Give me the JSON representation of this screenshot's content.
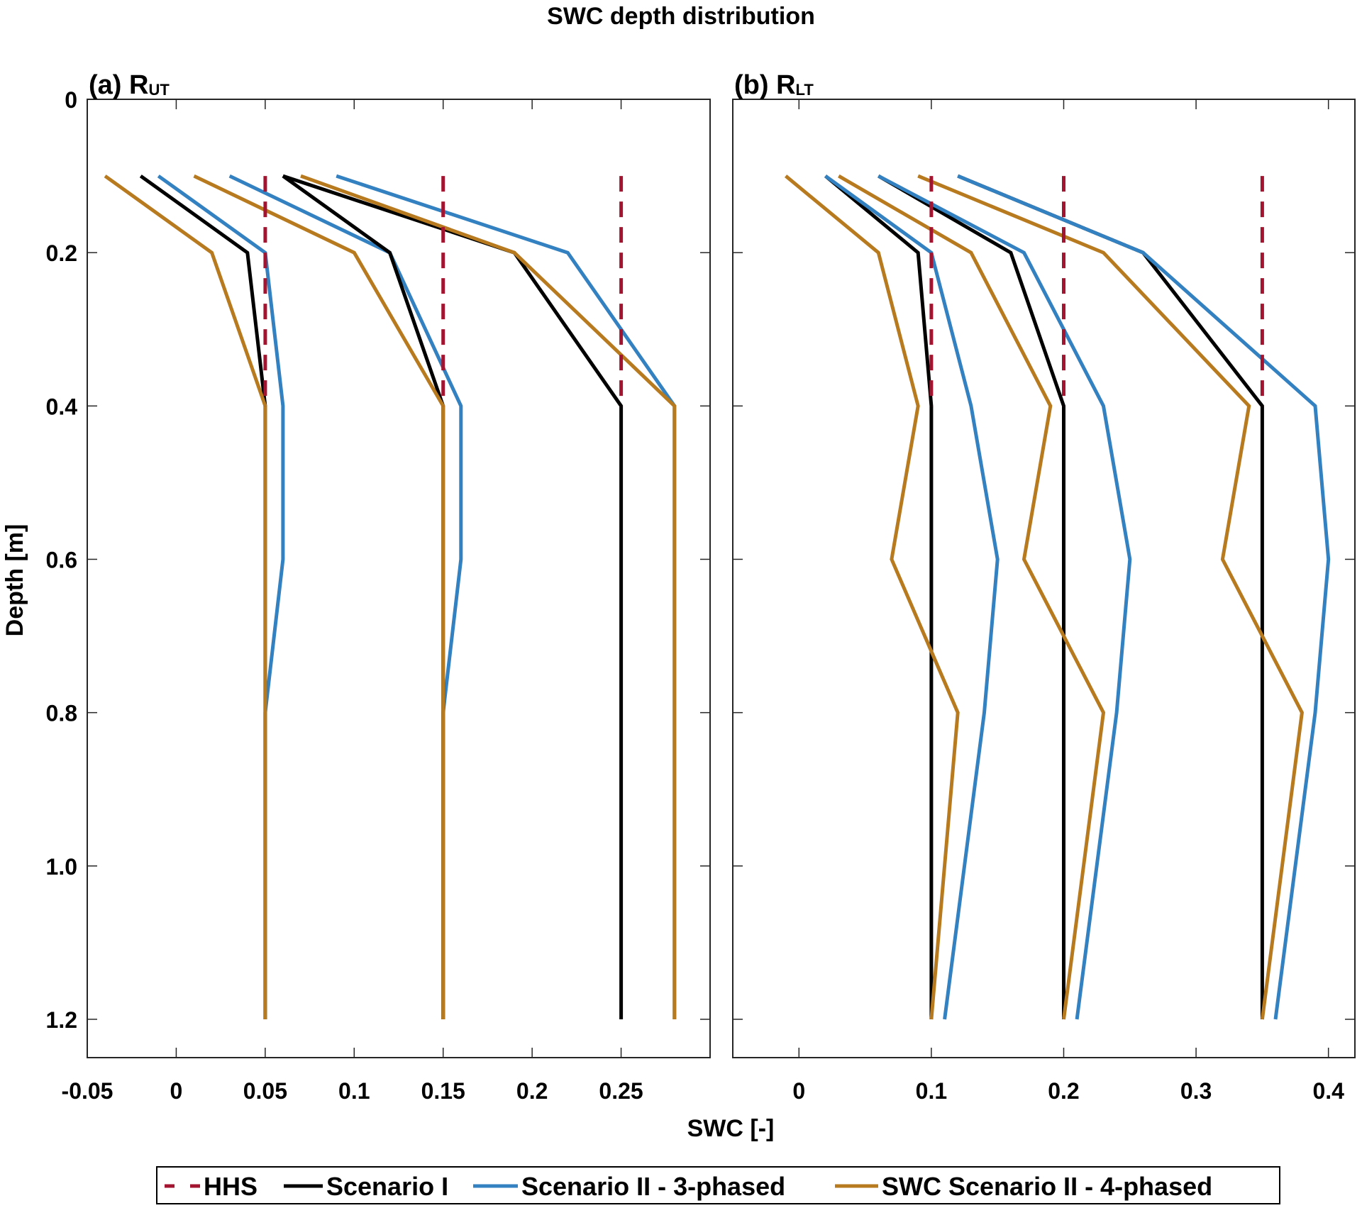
{
  "chart_data": {
    "type": "line",
    "title": "SWC depth distribution",
    "xlabel": "SWC [-]",
    "ylabel": "Depth [m]",
    "y_reversed": true,
    "grid": false,
    "legend": {
      "placement": "bottom-center",
      "orientation": "horizontal",
      "entries": [
        {
          "name": "HHS",
          "color": "#A2142F",
          "style": "dashed"
        },
        {
          "name": "Scenario I",
          "color": "#000000",
          "style": "solid"
        },
        {
          "name": "Scenario II - 3-phased",
          "color": "#3381C0",
          "style": "solid"
        },
        {
          "name": "SWC Scenario II - 4-phased",
          "color": "#B87A1E",
          "style": "solid"
        }
      ]
    },
    "panels": [
      {
        "id": "a",
        "label_prefix": "(a) R",
        "label_sub": "UT",
        "xlim": [
          -0.05,
          0.3
        ],
        "ylim": [
          0,
          1.25
        ],
        "xticks": [
          -0.05,
          0,
          0.05,
          0.1,
          0.15,
          0.2,
          0.25
        ],
        "xtick_labels": [
          "-0.05",
          "0",
          "0.05",
          "0.1",
          "0.15",
          "0.2",
          "0.25"
        ],
        "yticks": [
          0,
          0.2,
          0.4,
          0.6,
          0.8,
          1.0,
          1.2
        ],
        "ytick_labels": [
          "0",
          "0.2",
          "0.4",
          "0.6",
          "0.8",
          "1.0",
          "1.2"
        ],
        "show_ytick_labels": true,
        "series": [
          {
            "name": "HHS",
            "style": "dashed",
            "color": "#A2142F",
            "depth": [
              0.1,
              0.4
            ],
            "x": [
              0.05,
              0.05
            ]
          },
          {
            "name": "HHS",
            "style": "dashed",
            "color": "#A2142F",
            "depth": [
              0.1,
              0.4
            ],
            "x": [
              0.15,
              0.15
            ]
          },
          {
            "name": "HHS",
            "style": "dashed",
            "color": "#A2142F",
            "depth": [
              0.1,
              0.4
            ],
            "x": [
              0.25,
              0.25
            ]
          },
          {
            "name": "Scenario II - 3-phased",
            "color": "#3381C0",
            "depth": [
              0.1,
              0.2,
              0.4,
              0.6,
              0.8,
              1.2
            ],
            "x": [
              -0.01,
              0.05,
              0.06,
              0.06,
              0.05,
              0.05
            ]
          },
          {
            "name": "Scenario II - 3-phased",
            "color": "#3381C0",
            "depth": [
              0.1,
              0.2,
              0.4,
              0.6,
              0.8,
              1.2
            ],
            "x": [
              0.03,
              0.12,
              0.16,
              0.16,
              0.15,
              0.15
            ]
          },
          {
            "name": "Scenario II - 3-phased",
            "color": "#3381C0",
            "depth": [
              0.1,
              0.2,
              0.4,
              0.6,
              0.8,
              1.2
            ],
            "x": [
              0.09,
              0.22,
              0.28,
              0.28,
              0.28,
              0.28
            ]
          },
          {
            "name": "Scenario I",
            "color": "#000000",
            "depth": [
              0.1,
              0.2,
              0.4,
              0.6,
              0.8,
              1.2
            ],
            "x": [
              -0.02,
              0.04,
              0.05,
              0.05,
              0.05,
              0.05
            ]
          },
          {
            "name": "Scenario I",
            "color": "#000000",
            "depth": [
              0.1,
              0.2,
              0.4,
              0.6,
              0.8,
              1.2
            ],
            "x": [
              0.06,
              0.12,
              0.15,
              0.15,
              0.15,
              0.15
            ]
          },
          {
            "name": "Scenario I",
            "color": "#000000",
            "depth": [
              0.1,
              0.2,
              0.4,
              0.6,
              0.8,
              1.2
            ],
            "x": [
              0.06,
              0.19,
              0.25,
              0.25,
              0.25,
              0.25
            ]
          },
          {
            "name": "SWC Scenario II - 4-phased",
            "color": "#B87A1E",
            "depth": [
              0.1,
              0.2,
              0.4,
              0.6,
              0.8,
              1.2
            ],
            "x": [
              -0.04,
              0.02,
              0.05,
              0.05,
              0.05,
              0.05
            ]
          },
          {
            "name": "SWC Scenario II - 4-phased",
            "color": "#B87A1E",
            "depth": [
              0.1,
              0.2,
              0.4,
              0.6,
              0.8,
              1.2
            ],
            "x": [
              0.01,
              0.1,
              0.15,
              0.15,
              0.15,
              0.15
            ]
          },
          {
            "name": "SWC Scenario II - 4-phased",
            "color": "#B87A1E",
            "depth": [
              0.1,
              0.2,
              0.4,
              0.6,
              0.8,
              1.2
            ],
            "x": [
              0.07,
              0.19,
              0.28,
              0.28,
              0.28,
              0.28
            ]
          }
        ]
      },
      {
        "id": "b",
        "label_prefix": "(b) R",
        "label_sub": "LT",
        "xlim": [
          -0.05,
          0.42
        ],
        "ylim": [
          0,
          1.25
        ],
        "xticks": [
          0,
          0.1,
          0.2,
          0.3,
          0.4
        ],
        "xtick_labels": [
          "0",
          "0.1",
          "0.2",
          "0.3",
          "0.4"
        ],
        "yticks": [
          0,
          0.2,
          0.4,
          0.6,
          0.8,
          1.0,
          1.2
        ],
        "ytick_labels": [
          "0",
          "0.2",
          "0.4",
          "0.6",
          "0.8",
          "1.0",
          "1.2"
        ],
        "show_ytick_labels": false,
        "series": [
          {
            "name": "HHS",
            "style": "dashed",
            "color": "#A2142F",
            "depth": [
              0.1,
              0.4
            ],
            "x": [
              0.1,
              0.1
            ]
          },
          {
            "name": "HHS",
            "style": "dashed",
            "color": "#A2142F",
            "depth": [
              0.1,
              0.4
            ],
            "x": [
              0.2,
              0.2
            ]
          },
          {
            "name": "HHS",
            "style": "dashed",
            "color": "#A2142F",
            "depth": [
              0.1,
              0.4
            ],
            "x": [
              0.35,
              0.35
            ]
          },
          {
            "name": "Scenario I",
            "color": "#000000",
            "depth": [
              0.1,
              0.2,
              0.4,
              0.6,
              0.8,
              1.2
            ],
            "x": [
              0.02,
              0.09,
              0.1,
              0.1,
              0.1,
              0.1
            ]
          },
          {
            "name": "Scenario I",
            "color": "#000000",
            "depth": [
              0.1,
              0.2,
              0.4,
              0.6,
              0.8,
              1.2
            ],
            "x": [
              0.06,
              0.16,
              0.2,
              0.2,
              0.2,
              0.2
            ]
          },
          {
            "name": "Scenario I",
            "color": "#000000",
            "depth": [
              0.1,
              0.2,
              0.4,
              0.6,
              0.8,
              1.2
            ],
            "x": [
              0.12,
              0.26,
              0.35,
              0.35,
              0.35,
              0.35
            ]
          },
          {
            "name": "Scenario II - 3-phased",
            "color": "#3381C0",
            "depth": [
              0.1,
              0.2,
              0.4,
              0.6,
              0.8,
              1.2
            ],
            "x": [
              0.02,
              0.1,
              0.13,
              0.15,
              0.14,
              0.11
            ]
          },
          {
            "name": "Scenario II - 3-phased",
            "color": "#3381C0",
            "depth": [
              0.1,
              0.2,
              0.4,
              0.6,
              0.8,
              1.2
            ],
            "x": [
              0.06,
              0.17,
              0.23,
              0.25,
              0.24,
              0.21
            ]
          },
          {
            "name": "Scenario II - 3-phased",
            "color": "#3381C0",
            "depth": [
              0.1,
              0.2,
              0.4,
              0.6,
              0.8,
              1.2
            ],
            "x": [
              0.12,
              0.26,
              0.39,
              0.4,
              0.39,
              0.36
            ]
          },
          {
            "name": "SWC Scenario II - 4-phased",
            "color": "#B87A1E",
            "depth": [
              0.1,
              0.2,
              0.4,
              0.6,
              0.8,
              1.2
            ],
            "x": [
              -0.01,
              0.06,
              0.09,
              0.07,
              0.12,
              0.1
            ]
          },
          {
            "name": "SWC Scenario II - 4-phased",
            "color": "#B87A1E",
            "depth": [
              0.1,
              0.2,
              0.4,
              0.6,
              0.8,
              1.2
            ],
            "x": [
              0.03,
              0.13,
              0.19,
              0.17,
              0.23,
              0.2
            ]
          },
          {
            "name": "SWC Scenario II - 4-phased",
            "color": "#B87A1E",
            "depth": [
              0.1,
              0.2,
              0.4,
              0.6,
              0.8,
              1.2
            ],
            "x": [
              0.09,
              0.23,
              0.34,
              0.32,
              0.38,
              0.35
            ]
          }
        ]
      }
    ]
  }
}
